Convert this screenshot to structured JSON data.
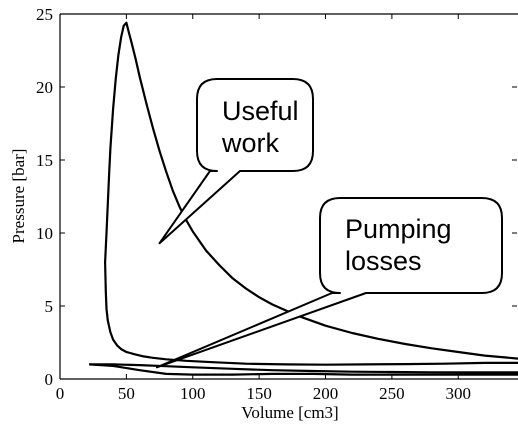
{
  "chart_data": {
    "type": "line",
    "title": "",
    "xlabel": "Volume [cm3]",
    "ylabel": "Pressure [bar]",
    "xlim": [
      0,
      345
    ],
    "ylim": [
      0,
      25
    ],
    "x_ticks": [
      0,
      50,
      100,
      150,
      200,
      250,
      300
    ],
    "y_ticks": [
      0,
      5,
      10,
      15,
      20,
      25
    ],
    "grid": false,
    "line_color": "#000000",
    "series": [
      {
        "x": [
          345,
          320,
          300,
          280,
          260,
          240,
          220,
          200,
          180,
          160,
          150,
          140,
          130,
          120,
          110,
          100,
          95,
          90,
          85,
          80,
          75,
          70,
          65,
          60,
          57,
          54,
          52,
          50,
          48,
          46,
          44,
          42,
          40,
          38,
          37,
          36,
          35,
          34,
          34.5,
          35,
          36,
          38,
          40,
          43,
          46,
          50,
          56,
          63,
          70,
          80,
          95,
          115,
          140,
          170,
          200,
          230,
          260,
          290,
          320,
          345
        ],
        "y": [
          1.4,
          1.6,
          1.85,
          2.1,
          2.4,
          2.75,
          3.15,
          3.65,
          4.3,
          5.1,
          5.6,
          6.2,
          6.9,
          7.8,
          8.8,
          10.1,
          10.9,
          11.8,
          12.9,
          14.2,
          15.6,
          17.2,
          18.9,
          20.7,
          21.9,
          23.0,
          23.7,
          24.4,
          24.2,
          23.4,
          22.2,
          20.6,
          18.5,
          15.8,
          14.0,
          12.0,
          10.0,
          8.0,
          6.0,
          4.8,
          4.0,
          3.2,
          2.7,
          2.3,
          2.05,
          1.85,
          1.7,
          1.55,
          1.45,
          1.35,
          1.25,
          1.15,
          1.05,
          1.0,
          0.98,
          1.0,
          1.02,
          1.05,
          1.1,
          1.1
        ]
      },
      {
        "x": [
          22,
          40,
          60,
          80,
          100,
          130,
          160,
          190,
          220,
          250,
          280,
          310,
          345
        ],
        "y": [
          1.0,
          1.0,
          0.95,
          0.88,
          0.8,
          0.7,
          0.6,
          0.55,
          0.5,
          0.48,
          0.46,
          0.45,
          0.45
        ]
      },
      {
        "x": [
          22,
          40,
          60,
          80,
          100,
          130,
          160,
          190,
          220,
          250,
          280,
          310,
          345
        ],
        "y": [
          1.0,
          0.9,
          0.6,
          0.35,
          0.3,
          0.3,
          0.35,
          0.35,
          0.3,
          0.3,
          0.3,
          0.3,
          0.3
        ]
      }
    ],
    "annotations": [
      {
        "lines": [
          "Useful",
          "work"
        ],
        "point": [
          75,
          9.3
        ]
      },
      {
        "lines": [
          "Pumping",
          "losses"
        ],
        "point": [
          73,
          0.8
        ]
      }
    ]
  }
}
